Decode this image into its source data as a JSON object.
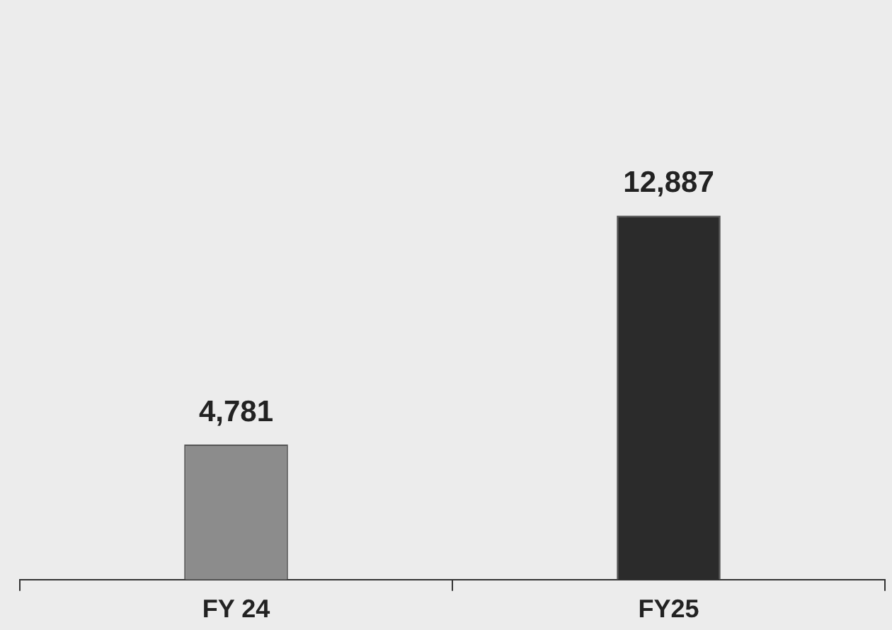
{
  "chart_data": {
    "type": "bar",
    "categories": [
      "FY 24",
      "FY25"
    ],
    "values": [
      4781,
      12887
    ],
    "value_labels": [
      "4,781",
      "12,887"
    ],
    "colors": [
      "#8c8c8c",
      "#2b2b2b"
    ],
    "grid": false,
    "legend": false,
    "tick_labels": "x"
  }
}
